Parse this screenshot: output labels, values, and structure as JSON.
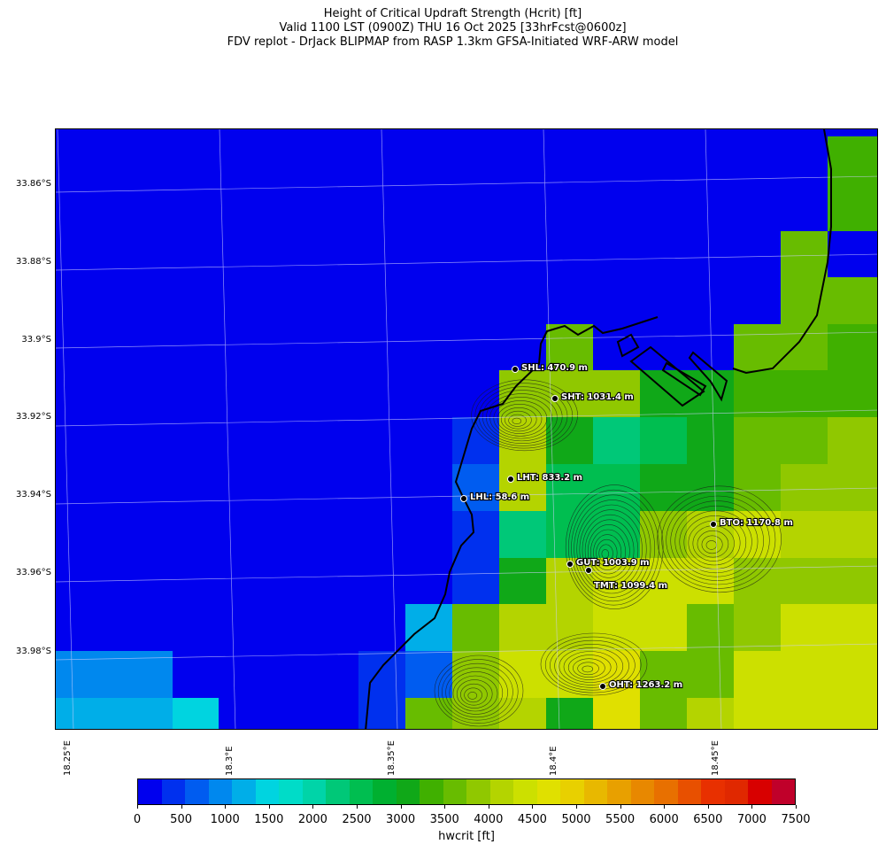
{
  "title": {
    "line1": "Height of Critical Updraft Strength (Hcrit) [ft]",
    "line2": "Valid 1100 LST (0900Z) THU 16 Oct 2025 [33hrFcst@0600z]",
    "line3": "FDV replot - DrJack BLIPMAP from RASP 1.3km GFSA-Initiated WRF-ARW model"
  },
  "axes": {
    "lat_ticks": [
      "33.86°S",
      "33.88°S",
      "33.9°S",
      "33.92°S",
      "33.94°S",
      "33.96°S",
      "33.98°S"
    ],
    "lon_ticks": [
      "18.25°E",
      "18.3°E",
      "18.35°E",
      "18.4°E",
      "18.45°E"
    ]
  },
  "colorbar": {
    "label": "hwcrit [ft]",
    "ticks": [
      "0",
      "500",
      "1000",
      "1500",
      "2000",
      "2500",
      "3000",
      "3500",
      "4000",
      "4500",
      "5000",
      "5500",
      "6000",
      "6500",
      "7000",
      "7500"
    ],
    "colors": [
      "#0000ee",
      "#0030ee",
      "#005cf0",
      "#0088ee",
      "#00aee8",
      "#00d4e0",
      "#00dcc8",
      "#00d4a8",
      "#00c878",
      "#00be50",
      "#00b030",
      "#10a818",
      "#40b000",
      "#68bc00",
      "#90c800",
      "#b4d400",
      "#cce000",
      "#e0e000",
      "#e8d000",
      "#e8b800",
      "#e8a000",
      "#e88800",
      "#e87000",
      "#e85000",
      "#e83000",
      "#e02800",
      "#d80000",
      "#c0002a"
    ]
  },
  "points": [
    {
      "label": "SHL: 470.9 m"
    },
    {
      "label": "SHT: 1031.4 m"
    },
    {
      "label": "LHT: 833.2 m"
    },
    {
      "label": "LHL: 58.6 m"
    },
    {
      "label": "BTO: 1170.8 m"
    },
    {
      "label": "GUT: 1003.9 m"
    },
    {
      "label": "TMT: 1099.4 m"
    },
    {
      "label": "OHT: 1263.2 m"
    }
  ],
  "legend_colors": {
    "ocean": "#0000ee",
    "coast": "#000000"
  }
}
